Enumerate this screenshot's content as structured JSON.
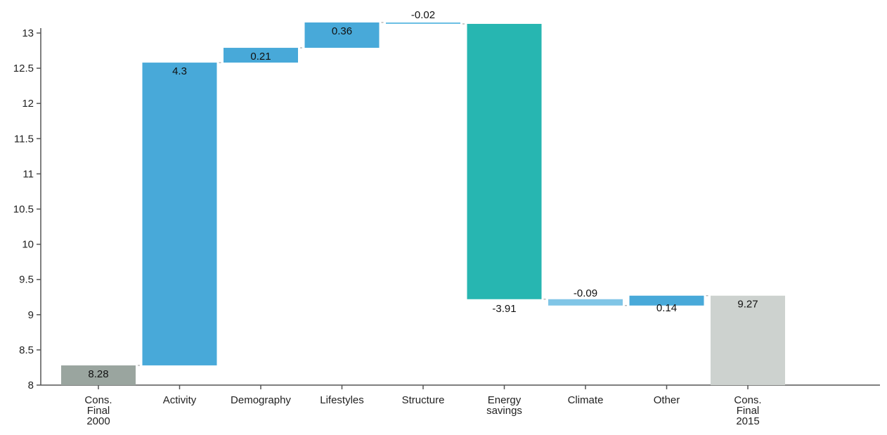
{
  "chart_data": {
    "type": "waterfall",
    "title": "",
    "xlabel": "",
    "ylabel": "",
    "ylim": [
      8,
      13
    ],
    "yticks": [
      "8",
      "8.5",
      "9",
      "9.5",
      "10",
      "10.5",
      "11",
      "11.5",
      "12",
      "12.5",
      "13"
    ],
    "grid": false,
    "bars": [
      {
        "label_lines": [
          "Cons.",
          "Final",
          "2000"
        ],
        "kind": "total",
        "value": 8.28,
        "value_label": "8.28",
        "color": "#9aa59f"
      },
      {
        "label_lines": [
          "Activity"
        ],
        "kind": "delta",
        "value": 4.3,
        "value_label": "4.3",
        "color": "#48a9d9"
      },
      {
        "label_lines": [
          "Demography"
        ],
        "kind": "delta",
        "value": 0.21,
        "value_label": "0.21",
        "color": "#48a9d9"
      },
      {
        "label_lines": [
          "Lifestyles"
        ],
        "kind": "delta",
        "value": 0.36,
        "value_label": "0.36",
        "color": "#48a9d9"
      },
      {
        "label_lines": [
          "Structure"
        ],
        "kind": "delta",
        "value": -0.02,
        "value_label": "-0.02",
        "color": "#6bbfe3"
      },
      {
        "label_lines": [
          "Energy",
          "savings"
        ],
        "kind": "delta",
        "value": -3.91,
        "value_label": "-3.91",
        "color": "#27b6b1"
      },
      {
        "label_lines": [
          "Climate"
        ],
        "kind": "delta",
        "value": -0.09,
        "value_label": "-0.09",
        "color": "#80c5e6"
      },
      {
        "label_lines": [
          "Other"
        ],
        "kind": "delta",
        "value": 0.14,
        "value_label": "0.14",
        "color": "#48a9d9"
      },
      {
        "label_lines": [
          "Cons.",
          "Final",
          "2015"
        ],
        "kind": "total",
        "value": 9.27,
        "value_label": "9.27",
        "color": "#cdd2cf"
      }
    ]
  }
}
